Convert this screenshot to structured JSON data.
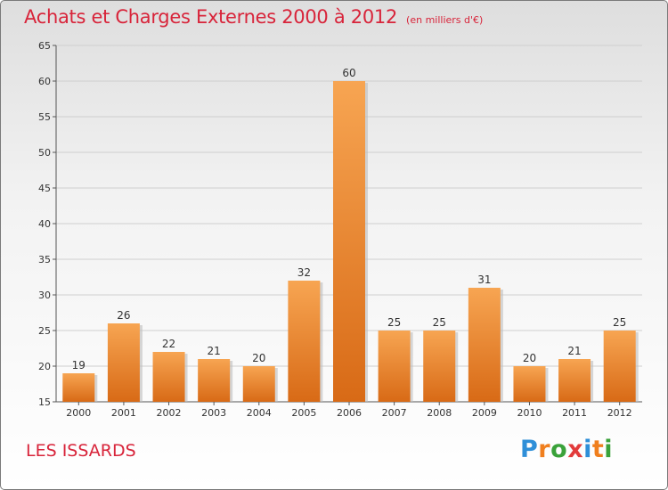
{
  "title": "Achats et Charges Externes 2000 à 2012",
  "subtitle": "(en milliers d'€)",
  "commune": "LES ISSARDS",
  "logo": {
    "text": "Proxiti",
    "letters": [
      {
        "char": "P",
        "color": "#2f8fd8"
      },
      {
        "char": "r",
        "color": "#f07f1e"
      },
      {
        "char": "o",
        "color": "#3aa23a"
      },
      {
        "char": "x",
        "color": "#e23b3b"
      },
      {
        "char": "i",
        "color": "#2f8fd8"
      },
      {
        "char": "t",
        "color": "#f07f1e"
      },
      {
        "char": "i",
        "color": "#3aa23a"
      }
    ]
  },
  "colors": {
    "title": "#d8243a",
    "bar_light": "#f7a552",
    "bar_dark": "#d86a16",
    "grid": "#cfcfcf"
  },
  "chart_data": {
    "type": "bar",
    "title": "Achats et Charges Externes 2000 à 2012",
    "subtitle": "(en milliers d'€)",
    "categories": [
      "2000",
      "2001",
      "2002",
      "2003",
      "2004",
      "2005",
      "2006",
      "2007",
      "2008",
      "2009",
      "2010",
      "2011",
      "2012"
    ],
    "values": [
      19,
      26,
      22,
      21,
      20,
      32,
      60,
      25,
      25,
      31,
      20,
      21,
      25
    ],
    "ylim": [
      15,
      65
    ],
    "yticks": [
      15,
      20,
      25,
      30,
      35,
      40,
      45,
      50,
      55,
      60,
      65
    ],
    "grid": true,
    "data_labels": true
  }
}
